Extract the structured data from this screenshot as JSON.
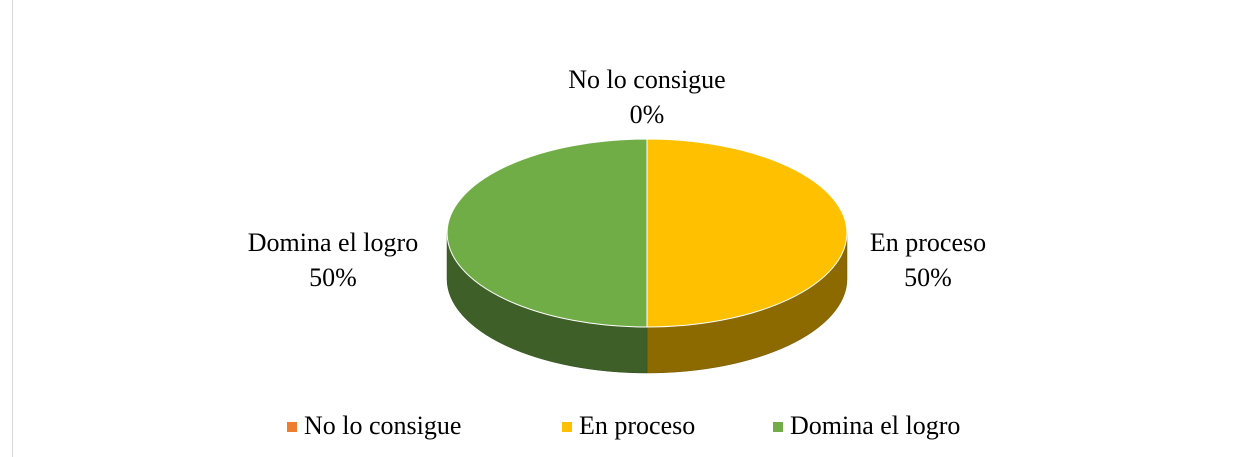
{
  "chart_data": {
    "type": "pie",
    "categories": [
      "No lo consigue",
      "En proceso",
      "Domina el logro"
    ],
    "values": [
      0,
      50,
      50
    ],
    "value_labels": [
      "0%",
      "50%",
      "50%"
    ],
    "colors": [
      "#ED7D31",
      "#FFC000",
      "#70AD47"
    ],
    "legend": "bottom"
  }
}
